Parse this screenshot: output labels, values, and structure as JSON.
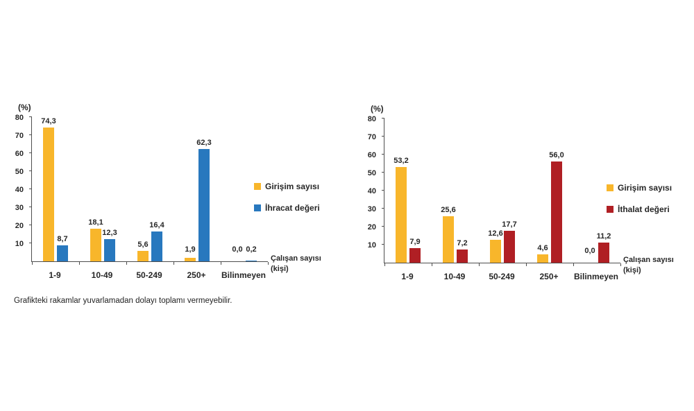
{
  "footnote": "Grafikteki rakamlar yuvarlamadan dolayı toplamı vermeyebilir.",
  "axis_color": "#4d4d4d",
  "chart_data": [
    {
      "id": "export",
      "type": "bar",
      "title": "",
      "ylabel": "(%)",
      "xlabel": "Çalışan sayısı (kişi)",
      "ylim": [
        0,
        80
      ],
      "ytick_step": 10,
      "grid": false,
      "legend_position": "right",
      "categories": [
        "1-9",
        "10-49",
        "50-249",
        "250+",
        "Bilinmeyen"
      ],
      "series": [
        {
          "name": "Girişim sayısı",
          "color": "#F8B62B",
          "values": [
            74.3,
            18.1,
            5.6,
            1.9,
            0.0
          ],
          "labels": [
            "74,3",
            "18,1",
            "5,6",
            "1,9",
            "0,0"
          ]
        },
        {
          "name": "İhracat değeri",
          "color": "#2878BE",
          "values": [
            8.7,
            12.3,
            16.4,
            62.3,
            0.2
          ],
          "labels": [
            "8,7",
            "12,3",
            "16,4",
            "62,3",
            "0,2"
          ]
        }
      ]
    },
    {
      "id": "import",
      "type": "bar",
      "title": "",
      "ylabel": "(%)",
      "xlabel": "Çalışan sayısı (kişi)",
      "ylim": [
        0,
        80
      ],
      "ytick_step": 10,
      "grid": false,
      "legend_position": "right",
      "categories": [
        "1-9",
        "10-49",
        "50-249",
        "250+",
        "Bilinmeyen"
      ],
      "series": [
        {
          "name": "Girişim sayısı",
          "color": "#F8B62B",
          "values": [
            53.2,
            25.6,
            12.6,
            4.6,
            0.0
          ],
          "labels": [
            "53,2",
            "25,6",
            "12,6",
            "4,6",
            "0,0"
          ]
        },
        {
          "name": "İthalat değeri",
          "color": "#B01F24",
          "values": [
            7.9,
            7.2,
            17.7,
            56.0,
            11.2
          ],
          "labels": [
            "7,9",
            "7,2",
            "17,7",
            "56,0",
            "11,2"
          ]
        }
      ]
    }
  ]
}
